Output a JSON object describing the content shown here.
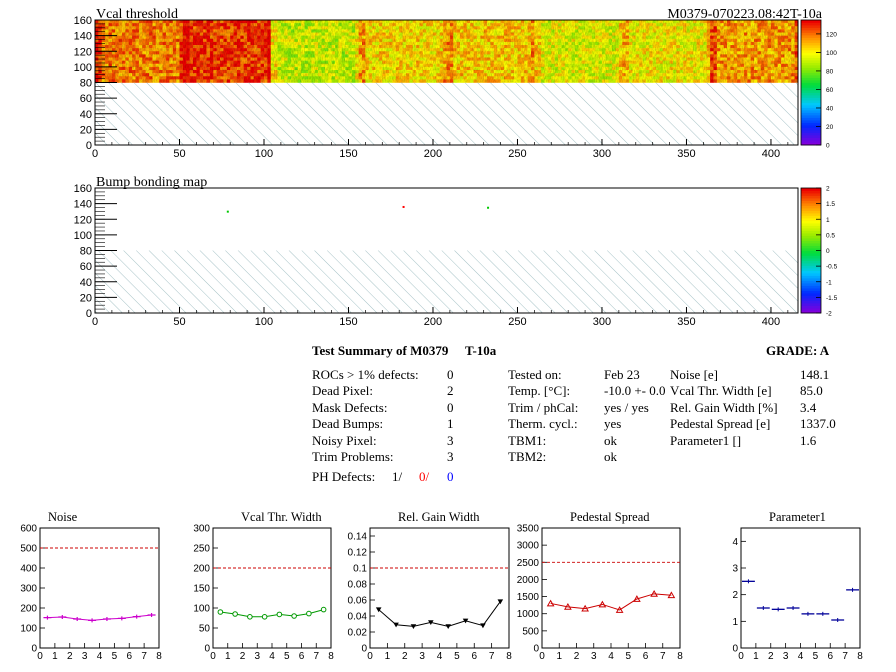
{
  "header": {
    "map1_title": "Vcal threshold",
    "module_id": "M0379-070223.08:42T-10a",
    "map2_title": "Bump bonding map"
  },
  "map_axes": {
    "x_ticks": [
      "0",
      "50",
      "100",
      "150",
      "200",
      "250",
      "300",
      "350",
      "400"
    ],
    "x_range": [
      0,
      416
    ],
    "y_ticks": [
      "0",
      "20",
      "40",
      "60",
      "80",
      "100",
      "120",
      "140",
      "160"
    ],
    "y_range": [
      0,
      160
    ]
  },
  "vcal_map": {
    "colorbar_ticks": [
      "0",
      "20",
      "40",
      "60",
      "80",
      "100",
      "120"
    ],
    "colorbar_range": [
      0,
      135
    ],
    "rows_covered": [
      80,
      160
    ],
    "column_bands": [
      {
        "from": 0,
        "to": 52,
        "level": 118
      },
      {
        "from": 52,
        "to": 104,
        "level": 128
      },
      {
        "from": 104,
        "to": 156,
        "level": 92
      },
      {
        "from": 156,
        "to": 208,
        "level": 104
      },
      {
        "from": 208,
        "to": 260,
        "level": 106
      },
      {
        "from": 260,
        "to": 312,
        "level": 96
      },
      {
        "from": 312,
        "to": 364,
        "level": 100
      },
      {
        "from": 364,
        "to": 416,
        "level": 114
      }
    ]
  },
  "bump_map": {
    "colorbar_ticks": [
      "-2",
      "-1.5",
      "-1",
      "-0.5",
      "0",
      "0.5",
      "1",
      "1.5",
      "2"
    ],
    "colorbar_range": [
      -2,
      2
    ],
    "hits": [
      {
        "x": 78,
        "y": 131,
        "color": "#00c800"
      },
      {
        "x": 182,
        "y": 137,
        "color": "#ff0000"
      },
      {
        "x": 232,
        "y": 136,
        "color": "#00c800"
      }
    ]
  },
  "summary": {
    "title": "Test Summary of M0379",
    "temp_label": "T-10a",
    "grade_label": "GRADE:  A",
    "counts": [
      {
        "label": "ROCs > 1% defects:",
        "value": "0"
      },
      {
        "label": "Dead Pixel:",
        "value": "2"
      },
      {
        "label": "Mask Defects:",
        "value": "0"
      },
      {
        "label": "Dead Bumps:",
        "value": "1"
      },
      {
        "label": "Noisy Pixel:",
        "value": "3"
      },
      {
        "label": "Trim Problems:",
        "value": "3"
      }
    ],
    "ph_defects_label": "PH Defects:",
    "ph_defects_values": [
      "1/",
      "0/",
      "0"
    ],
    "conditions": [
      {
        "label": "Tested on:",
        "value": "Feb 23"
      },
      {
        "label": "Temp. [°C]:",
        "value": "-10.0 +- 0.0"
      },
      {
        "label": "Trim / phCal:",
        "value": "yes / yes"
      },
      {
        "label": "Therm. cycl.:",
        "value": "yes"
      },
      {
        "label": "TBM1:",
        "value": "ok"
      },
      {
        "label": "TBM2:",
        "value": "ok"
      }
    ],
    "results": [
      {
        "label": "Noise [e]",
        "value": "148.1"
      },
      {
        "label": "Vcal Thr. Width [e]",
        "value": "85.0"
      },
      {
        "label": "Rel. Gain Width [%]",
        "value": "3.4"
      },
      {
        "label": "Pedestal Spread [e]",
        "value": "1337.0"
      },
      {
        "label": "Parameter1 []",
        "value": "1.6"
      }
    ]
  },
  "chart_data": [
    {
      "type": "line",
      "title": "Noise",
      "x": [
        0.5,
        1.5,
        2.5,
        3.5,
        4.5,
        5.5,
        6.5,
        7.5
      ],
      "values": [
        152,
        155,
        145,
        138,
        145,
        148,
        157,
        165
      ],
      "errors": [
        20,
        20,
        20,
        20,
        20,
        20,
        20,
        20
      ],
      "xlim": [
        0,
        8
      ],
      "ylim": [
        0,
        600
      ],
      "yticks": [
        "0",
        "100",
        "200",
        "300",
        "400",
        "500",
        "600"
      ],
      "xticks": [
        "0",
        "1",
        "2",
        "3",
        "4",
        "5",
        "6",
        "7",
        "8"
      ],
      "threshold": 500,
      "color": "#cc00cc",
      "marker": "plus"
    },
    {
      "type": "line",
      "title": "Vcal Thr. Width",
      "x": [
        0.5,
        1.5,
        2.5,
        3.5,
        4.5,
        5.5,
        6.5,
        7.5
      ],
      "values": [
        90,
        85,
        78,
        78,
        84,
        80,
        86,
        96
      ],
      "xlim": [
        0,
        8
      ],
      "ylim": [
        0,
        300
      ],
      "yticks": [
        "0",
        "50",
        "100",
        "150",
        "200",
        "250",
        "300"
      ],
      "xticks": [
        "0",
        "1",
        "2",
        "3",
        "4",
        "5",
        "6",
        "7",
        "8"
      ],
      "threshold": 200,
      "color": "#009900",
      "marker": "circle"
    },
    {
      "type": "line",
      "title": "Rel. Gain Width",
      "x": [
        0.5,
        1.5,
        2.5,
        3.5,
        4.5,
        5.5,
        6.5,
        7.5
      ],
      "values": [
        0.048,
        0.029,
        0.027,
        0.032,
        0.027,
        0.034,
        0.028,
        0.058
      ],
      "xlim": [
        0,
        8
      ],
      "ylim": [
        0,
        0.15
      ],
      "yticks": [
        "0",
        "0.02",
        "0.04",
        "0.06",
        "0.08",
        "0.1",
        "0.12",
        "0.14"
      ],
      "ytick_values": [
        0,
        0.02,
        0.04,
        0.06,
        0.08,
        0.1,
        0.12,
        0.14
      ],
      "xticks": [
        "0",
        "1",
        "2",
        "3",
        "4",
        "5",
        "6",
        "7",
        "8"
      ],
      "threshold": 0.1,
      "color": "#000000",
      "marker": "triangle-down"
    },
    {
      "type": "line",
      "title": "Pedestal Spread",
      "x": [
        0.5,
        1.5,
        2.5,
        3.5,
        4.5,
        5.5,
        6.5,
        7.5
      ],
      "values": [
        1300,
        1200,
        1150,
        1270,
        1110,
        1430,
        1580,
        1540
      ],
      "xlim": [
        0,
        8
      ],
      "ylim": [
        0,
        3500
      ],
      "yticks": [
        "0",
        "500",
        "1000",
        "1500",
        "2000",
        "2500",
        "3000",
        "3500"
      ],
      "xticks": [
        "0",
        "1",
        "2",
        "3",
        "4",
        "5",
        "6",
        "7",
        "8"
      ],
      "threshold": 2500,
      "color": "#cc0000",
      "marker": "triangle-up"
    },
    {
      "type": "scatter",
      "title": "Parameter1",
      "x": [
        0.5,
        1.5,
        2.5,
        3.5,
        4.5,
        5.5,
        6.5,
        7.5
      ],
      "values": [
        2.5,
        1.5,
        1.45,
        1.5,
        1.28,
        1.28,
        1.05,
        2.18
      ],
      "xlim": [
        0,
        8
      ],
      "ylim": [
        0,
        4.5
      ],
      "yticks": [
        "0",
        "1",
        "2",
        "3",
        "4"
      ],
      "ytick_values": [
        0,
        1,
        2,
        3,
        4
      ],
      "xticks": [
        "0",
        "1",
        "2",
        "3",
        "4",
        "5",
        "6",
        "7",
        "8"
      ],
      "color": "#000099",
      "marker": "hbar"
    }
  ]
}
